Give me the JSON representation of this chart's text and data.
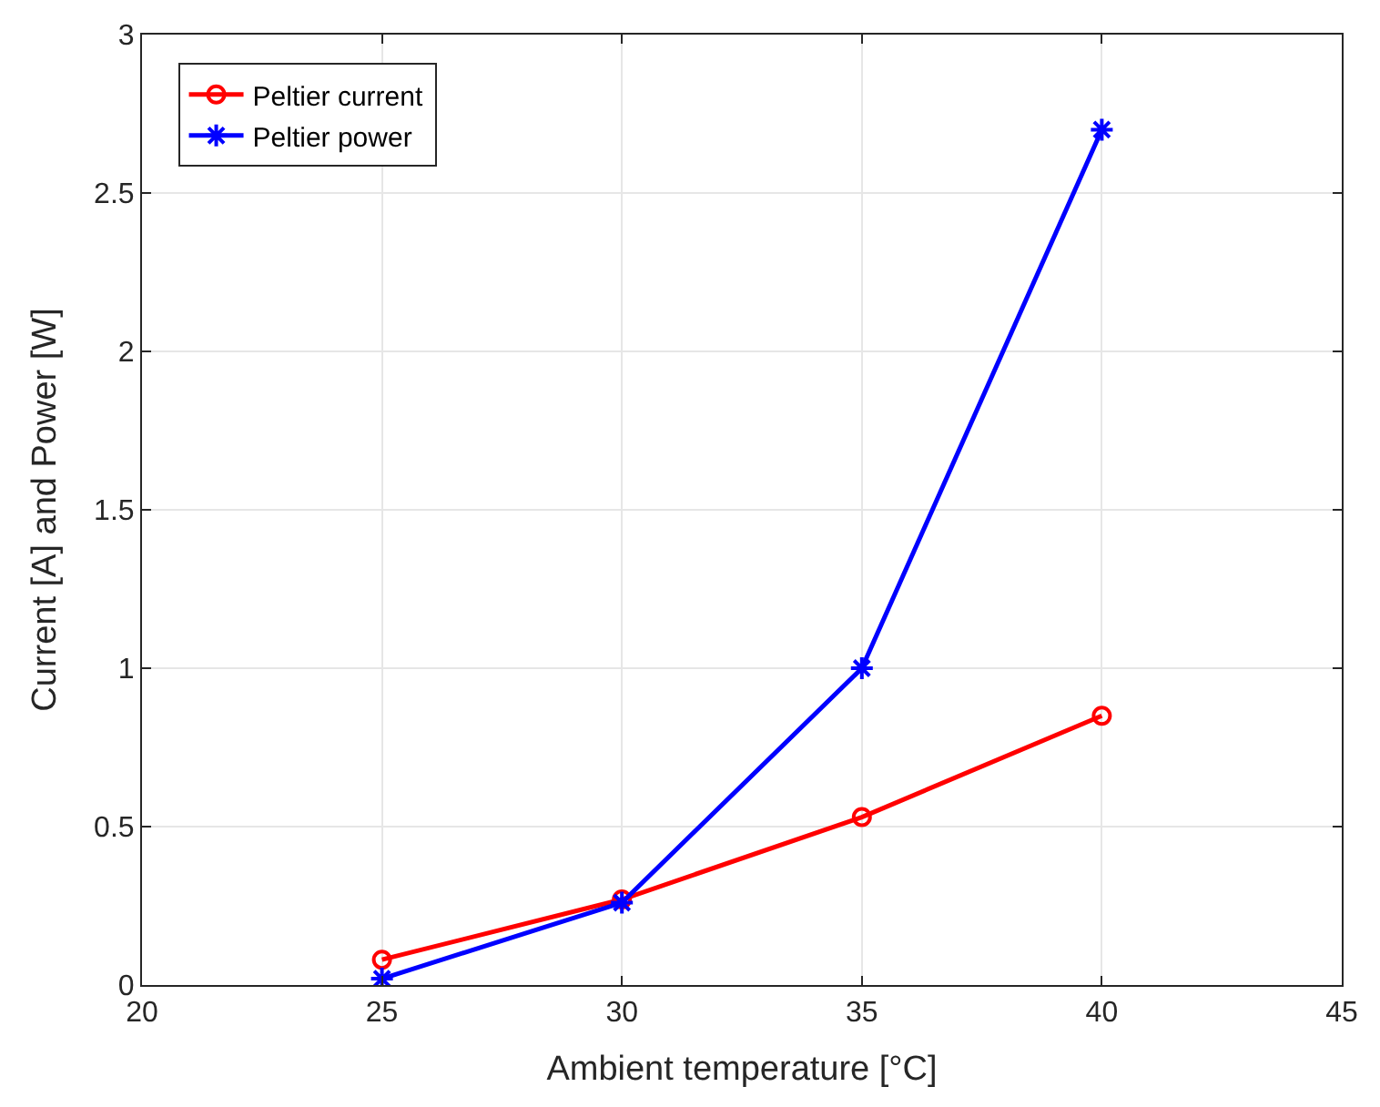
{
  "chart_data": {
    "type": "line",
    "xlabel": "Ambient temperature [°C]",
    "ylabel": "Current [A] and Power [W]",
    "x": [
      25,
      30,
      35,
      40
    ],
    "series": [
      {
        "name": "Peltier current",
        "color": "#ff0000",
        "marker": "circle",
        "values": [
          0.08,
          0.27,
          0.53,
          0.85
        ]
      },
      {
        "name": "Peltier power",
        "color": "#0000ff",
        "marker": "cross",
        "values": [
          0.02,
          0.26,
          1.0,
          2.7
        ]
      }
    ],
    "xlim": [
      20,
      45
    ],
    "xticks": [
      20,
      25,
      30,
      35,
      40,
      45
    ],
    "ylim": [
      0,
      3
    ],
    "yticks": [
      0,
      0.5,
      1,
      1.5,
      2,
      2.5,
      3
    ],
    "grid": true,
    "legend": "top left",
    "line_style": "solid"
  }
}
